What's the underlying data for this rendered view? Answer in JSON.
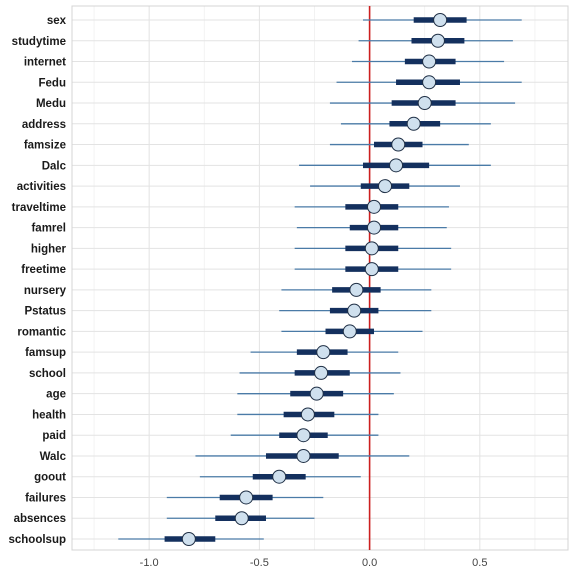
{
  "chart_data": {
    "type": "forest",
    "title": "",
    "xlabel": "",
    "ylabel": "",
    "xlim": [
      -1.35,
      0.9
    ],
    "grid": true,
    "reference_line": {
      "x": 0,
      "color": "#cc1f1f"
    },
    "x_ticks": [
      -1.0,
      -0.5,
      0.0,
      0.5
    ],
    "x_tick_labels": [
      "-1.0",
      "-0.5",
      "0.0",
      "0.5"
    ],
    "colors": {
      "inner_interval": "#14305e",
      "outer_interval": "#4a7ba7",
      "point_fill": "#cfe0ee",
      "point_stroke": "#1f2f45"
    },
    "variables": [
      {
        "name": "sex",
        "estimate": 0.32,
        "inner": [
          0.2,
          0.44
        ],
        "outer": [
          -0.03,
          0.69
        ]
      },
      {
        "name": "studytime",
        "estimate": 0.31,
        "inner": [
          0.19,
          0.43
        ],
        "outer": [
          -0.05,
          0.65
        ]
      },
      {
        "name": "internet",
        "estimate": 0.27,
        "inner": [
          0.16,
          0.39
        ],
        "outer": [
          -0.08,
          0.61
        ]
      },
      {
        "name": "Fedu",
        "estimate": 0.27,
        "inner": [
          0.12,
          0.41
        ],
        "outer": [
          -0.15,
          0.69
        ]
      },
      {
        "name": "Medu",
        "estimate": 0.25,
        "inner": [
          0.1,
          0.39
        ],
        "outer": [
          -0.18,
          0.66
        ]
      },
      {
        "name": "address",
        "estimate": 0.2,
        "inner": [
          0.09,
          0.32
        ],
        "outer": [
          -0.13,
          0.55
        ]
      },
      {
        "name": "famsize",
        "estimate": 0.13,
        "inner": [
          0.02,
          0.24
        ],
        "outer": [
          -0.18,
          0.45
        ]
      },
      {
        "name": "Dalc",
        "estimate": 0.12,
        "inner": [
          -0.03,
          0.27
        ],
        "outer": [
          -0.32,
          0.55
        ]
      },
      {
        "name": "activities",
        "estimate": 0.07,
        "inner": [
          -0.04,
          0.18
        ],
        "outer": [
          -0.27,
          0.41
        ]
      },
      {
        "name": "traveltime",
        "estimate": 0.02,
        "inner": [
          -0.11,
          0.13
        ],
        "outer": [
          -0.34,
          0.36
        ]
      },
      {
        "name": "famrel",
        "estimate": 0.02,
        "inner": [
          -0.09,
          0.13
        ],
        "outer": [
          -0.33,
          0.35
        ]
      },
      {
        "name": "higher",
        "estimate": 0.01,
        "inner": [
          -0.11,
          0.13
        ],
        "outer": [
          -0.34,
          0.37
        ]
      },
      {
        "name": "freetime",
        "estimate": 0.01,
        "inner": [
          -0.11,
          0.13
        ],
        "outer": [
          -0.34,
          0.37
        ]
      },
      {
        "name": "nursery",
        "estimate": -0.06,
        "inner": [
          -0.17,
          0.05
        ],
        "outer": [
          -0.4,
          0.28
        ]
      },
      {
        "name": "Pstatus",
        "estimate": -0.07,
        "inner": [
          -0.18,
          0.04
        ],
        "outer": [
          -0.41,
          0.28
        ]
      },
      {
        "name": "romantic",
        "estimate": -0.09,
        "inner": [
          -0.2,
          0.02
        ],
        "outer": [
          -0.4,
          0.24
        ]
      },
      {
        "name": "famsup",
        "estimate": -0.21,
        "inner": [
          -0.33,
          -0.1
        ],
        "outer": [
          -0.54,
          0.13
        ]
      },
      {
        "name": "school",
        "estimate": -0.22,
        "inner": [
          -0.34,
          -0.09
        ],
        "outer": [
          -0.59,
          0.14
        ]
      },
      {
        "name": "age",
        "estimate": -0.24,
        "inner": [
          -0.36,
          -0.12
        ],
        "outer": [
          -0.6,
          0.11
        ]
      },
      {
        "name": "health",
        "estimate": -0.28,
        "inner": [
          -0.39,
          -0.16
        ],
        "outer": [
          -0.6,
          0.04
        ]
      },
      {
        "name": "paid",
        "estimate": -0.3,
        "inner": [
          -0.41,
          -0.19
        ],
        "outer": [
          -0.63,
          0.04
        ]
      },
      {
        "name": "Walc",
        "estimate": -0.3,
        "inner": [
          -0.47,
          -0.14
        ],
        "outer": [
          -0.79,
          0.18
        ]
      },
      {
        "name": "goout",
        "estimate": -0.41,
        "inner": [
          -0.53,
          -0.29
        ],
        "outer": [
          -0.77,
          -0.04
        ]
      },
      {
        "name": "failures",
        "estimate": -0.56,
        "inner": [
          -0.68,
          -0.44
        ],
        "outer": [
          -0.92,
          -0.21
        ]
      },
      {
        "name": "absences",
        "estimate": -0.58,
        "inner": [
          -0.7,
          -0.47
        ],
        "outer": [
          -0.92,
          -0.25
        ]
      },
      {
        "name": "schoolsup",
        "estimate": -0.82,
        "inner": [
          -0.93,
          -0.7
        ],
        "outer": [
          -1.14,
          -0.48
        ]
      }
    ]
  }
}
